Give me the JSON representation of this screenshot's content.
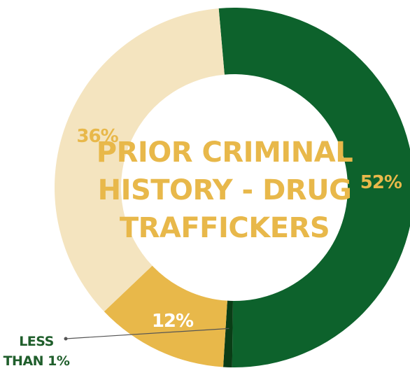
{
  "chart_data": {
    "type": "pie",
    "variant": "donut",
    "title_lines": [
      "PRIOR CRIMINAL",
      "HISTORY - DRUG",
      "TRAFFICKERS"
    ],
    "slices": [
      {
        "value": 52,
        "label": "52%",
        "color": "#0d622c",
        "label_color": "#e8b84a"
      },
      {
        "value": 0.8,
        "label": "LESS THAN 1%",
        "label_lines": [
          "LESS",
          "THAN 1%"
        ],
        "color": "#0a3d16",
        "label_color": "#1f5e2b"
      },
      {
        "value": 12,
        "label": "12%",
        "color": "#e8b84a",
        "label_color": "#ffffff"
      },
      {
        "value": 36,
        "label": "36%",
        "color": "#f4e4bf",
        "label_color": "#e8b84a"
      }
    ]
  }
}
